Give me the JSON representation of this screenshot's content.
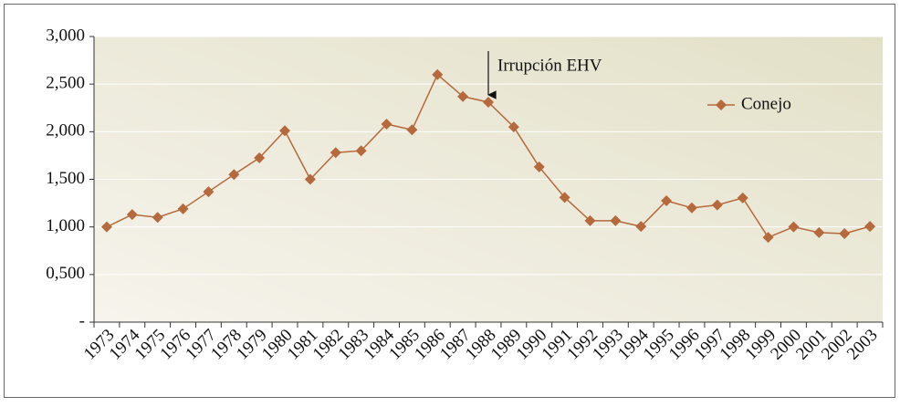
{
  "chart_data": {
    "type": "line",
    "annotation": "Irrupción EHV",
    "categories": [
      "1973",
      "1974",
      "1975",
      "1976",
      "1977",
      "1978",
      "1979",
      "1980",
      "1981",
      "1982",
      "1983",
      "1984",
      "1985",
      "1986",
      "1987",
      "1988",
      "1989",
      "1990",
      "1991",
      "1992",
      "1993",
      "1994",
      "1995",
      "1996",
      "1997",
      "1998",
      "1999",
      "2000",
      "2001",
      "2002",
      "2003"
    ],
    "series": [
      {
        "name": "Conejo",
        "color": "#b5693c",
        "values": [
          1000,
          1130,
          1100,
          1190,
          1370,
          1550,
          1725,
          2010,
          1500,
          1780,
          1800,
          2080,
          2020,
          2600,
          2370,
          2310,
          2050,
          1630,
          1310,
          1065,
          1065,
          1005,
          1275,
          1200,
          1230,
          1305,
          890,
          1000,
          940,
          930,
          1005
        ]
      }
    ],
    "ylim": [
      0,
      3000
    ],
    "yticks": [
      {
        "value": 0,
        "label": "-"
      },
      {
        "value": 500,
        "label": "0,500"
      },
      {
        "value": 1000,
        "label": "1,000"
      },
      {
        "value": 1500,
        "label": "1,500"
      },
      {
        "value": 2000,
        "label": "2,000"
      },
      {
        "value": 2500,
        "label": "2,500"
      },
      {
        "value": 3000,
        "label": "3,000"
      }
    ],
    "grid": true,
    "legend": "upper right"
  }
}
